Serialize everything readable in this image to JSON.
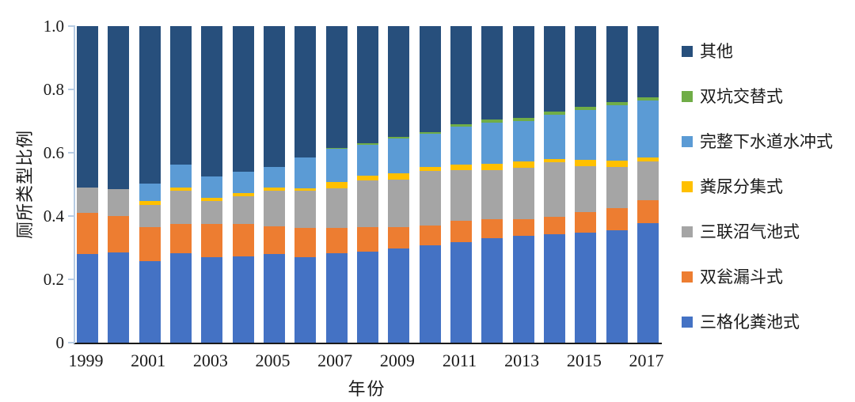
{
  "chart_data": {
    "type": "bar",
    "variant": "100%-stacked-column",
    "title": "",
    "xlabel": "年份",
    "ylabel": "厕所类型比例",
    "ylim": [
      0,
      1
    ],
    "grid": false,
    "legend_position": "right",
    "yticks": [
      "0",
      "0.2",
      "0.4",
      "0.6",
      "0.8",
      "1.0"
    ],
    "xticks": [
      "1999",
      "2001",
      "2003",
      "2005",
      "2007",
      "2009",
      "2011",
      "2013",
      "2015",
      "2017"
    ],
    "categories": [
      1999,
      2000,
      2001,
      2002,
      2003,
      2004,
      2005,
      2006,
      2007,
      2008,
      2009,
      2010,
      2011,
      2012,
      2013,
      2014,
      2015,
      2016,
      2017
    ],
    "series": [
      {
        "name": "三格化粪池式",
        "color": "#4472C4",
        "values": [
          0.28,
          0.285,
          0.258,
          0.282,
          0.27,
          0.272,
          0.28,
          0.27,
          0.283,
          0.288,
          0.298,
          0.308,
          0.318,
          0.33,
          0.338,
          0.343,
          0.347,
          0.355,
          0.378
        ]
      },
      {
        "name": "双瓮漏斗式",
        "color": "#ED7D31",
        "values": [
          0.13,
          0.115,
          0.108,
          0.092,
          0.105,
          0.103,
          0.088,
          0.092,
          0.08,
          0.077,
          0.066,
          0.062,
          0.068,
          0.06,
          0.052,
          0.055,
          0.065,
          0.069,
          0.073
        ]
      },
      {
        "name": "三联沼气池式",
        "color": "#A5A5A5",
        "values": [
          0.08,
          0.085,
          0.07,
          0.106,
          0.073,
          0.088,
          0.112,
          0.118,
          0.125,
          0.147,
          0.152,
          0.172,
          0.159,
          0.155,
          0.163,
          0.173,
          0.146,
          0.132,
          0.121
        ]
      },
      {
        "name": "粪尿分集式",
        "color": "#FFC000",
        "values": [
          0.0,
          0.0,
          0.012,
          0.01,
          0.01,
          0.01,
          0.01,
          0.008,
          0.02,
          0.016,
          0.018,
          0.012,
          0.017,
          0.02,
          0.02,
          0.008,
          0.02,
          0.018,
          0.012
        ]
      },
      {
        "name": "完整下水道水冲式",
        "color": "#5B9BD5",
        "values": [
          0.0,
          0.0,
          0.055,
          0.073,
          0.068,
          0.068,
          0.066,
          0.097,
          0.104,
          0.097,
          0.11,
          0.106,
          0.12,
          0.13,
          0.127,
          0.14,
          0.157,
          0.176,
          0.182
        ]
      },
      {
        "name": "双坑交替式",
        "color": "#70AD47",
        "values": [
          0.0,
          0.0,
          0.0,
          0.0,
          0.0,
          0.0,
          0.0,
          0.0,
          0.004,
          0.005,
          0.006,
          0.005,
          0.008,
          0.01,
          0.01,
          0.011,
          0.01,
          0.01,
          0.008
        ]
      },
      {
        "name": "其他",
        "color": "#274F7C",
        "values": [
          0.51,
          0.515,
          0.497,
          0.437,
          0.474,
          0.459,
          0.444,
          0.415,
          0.384,
          0.37,
          0.35,
          0.335,
          0.31,
          0.295,
          0.29,
          0.27,
          0.255,
          0.24,
          0.226
        ]
      }
    ],
    "legend": [
      {
        "label": "其他",
        "color": "#274F7C"
      },
      {
        "label": "双坑交替式",
        "color": "#70AD47"
      },
      {
        "label": "完整下水道水冲式",
        "color": "#5B9BD5"
      },
      {
        "label": "粪尿分集式",
        "color": "#FFC000"
      },
      {
        "label": "三联沼气池式",
        "color": "#A5A5A5"
      },
      {
        "label": "双瓮漏斗式",
        "color": "#ED7D31"
      },
      {
        "label": "三格化粪池式",
        "color": "#4472C4"
      }
    ],
    "axis_colors": {
      "y_axis_line": "#b7cce4",
      "x_axis_line": "#1a1a1a"
    }
  }
}
